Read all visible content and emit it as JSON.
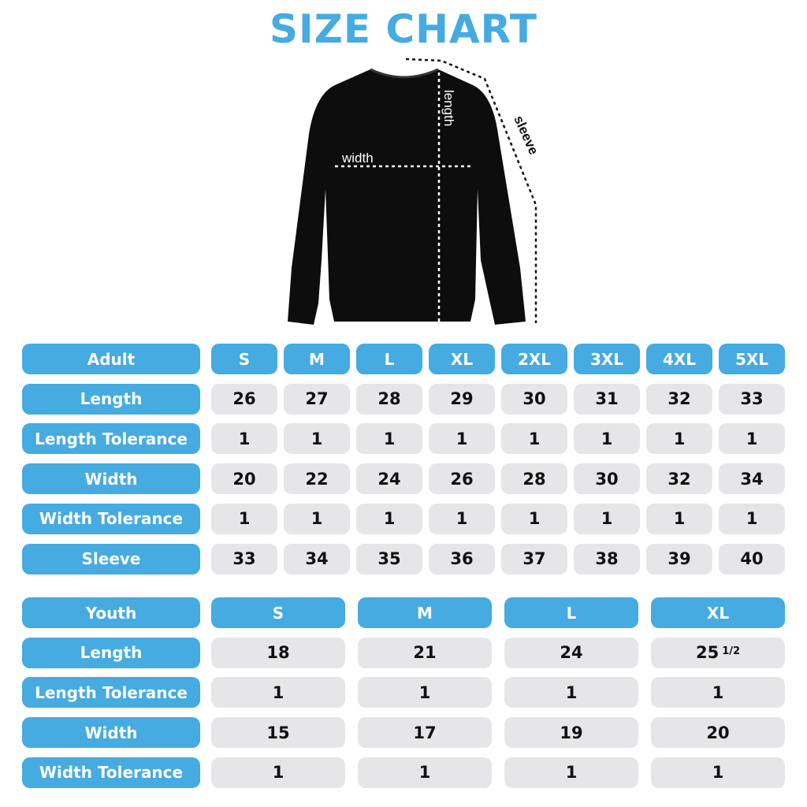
{
  "title": "SIZE CHART",
  "diagram_labels": {
    "width": "width",
    "length": "length",
    "sleeve": "sleeve"
  },
  "colors": {
    "accent": "#45abe0",
    "cell": "#e6e6e8",
    "garment": "#0d0d0d"
  },
  "adult": {
    "header": "Adult",
    "sizes": [
      "S",
      "M",
      "L",
      "XL",
      "2XL",
      "3XL",
      "4XL",
      "5XL"
    ],
    "rows": [
      {
        "label": "Length",
        "values": [
          "26",
          "27",
          "28",
          "29",
          "30",
          "31",
          "32",
          "33"
        ]
      },
      {
        "label": "Length Tolerance",
        "values": [
          "1",
          "1",
          "1",
          "1",
          "1",
          "1",
          "1",
          "1"
        ]
      },
      {
        "label": "Width",
        "values": [
          "20",
          "22",
          "24",
          "26",
          "28",
          "30",
          "32",
          "34"
        ]
      },
      {
        "label": "Width Tolerance",
        "values": [
          "1",
          "1",
          "1",
          "1",
          "1",
          "1",
          "1",
          "1"
        ]
      },
      {
        "label": "Sleeve",
        "values": [
          "33",
          "34",
          "35",
          "36",
          "37",
          "38",
          "39",
          "40"
        ]
      }
    ]
  },
  "youth": {
    "header": "Youth",
    "sizes": [
      "S",
      "M",
      "L",
      "XL"
    ],
    "rows": [
      {
        "label": "Length",
        "values": [
          "18",
          "21",
          "24",
          {
            "whole": "25",
            "fraction": "1/2"
          }
        ]
      },
      {
        "label": "Length Tolerance",
        "values": [
          "1",
          "1",
          "1",
          "1"
        ]
      },
      {
        "label": "Width",
        "values": [
          "15",
          "17",
          "19",
          "20"
        ]
      },
      {
        "label": "Width Tolerance",
        "values": [
          "1",
          "1",
          "1",
          "1"
        ]
      }
    ]
  }
}
